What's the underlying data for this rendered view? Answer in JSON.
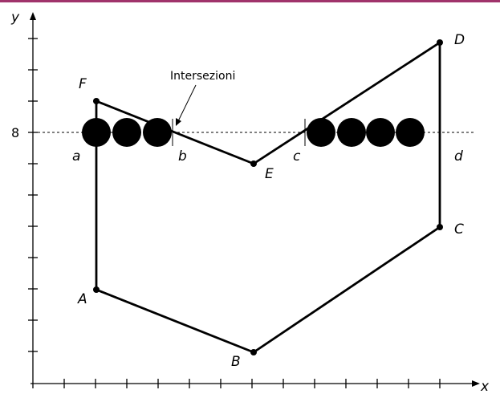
{
  "colors": {
    "top_bar": "#a0336b",
    "ink": "#000000",
    "background": "#ffffff"
  },
  "axes": {
    "x_label": "x",
    "y_label": "y",
    "y_tick_value": "8"
  },
  "vertices": {
    "A": "A",
    "B": "B",
    "C": "C",
    "D": "D",
    "E": "E",
    "F": "F"
  },
  "intersections": {
    "a": "a",
    "b": "b",
    "c": "c",
    "d": "d"
  },
  "annotation": "Intersezioni"
}
